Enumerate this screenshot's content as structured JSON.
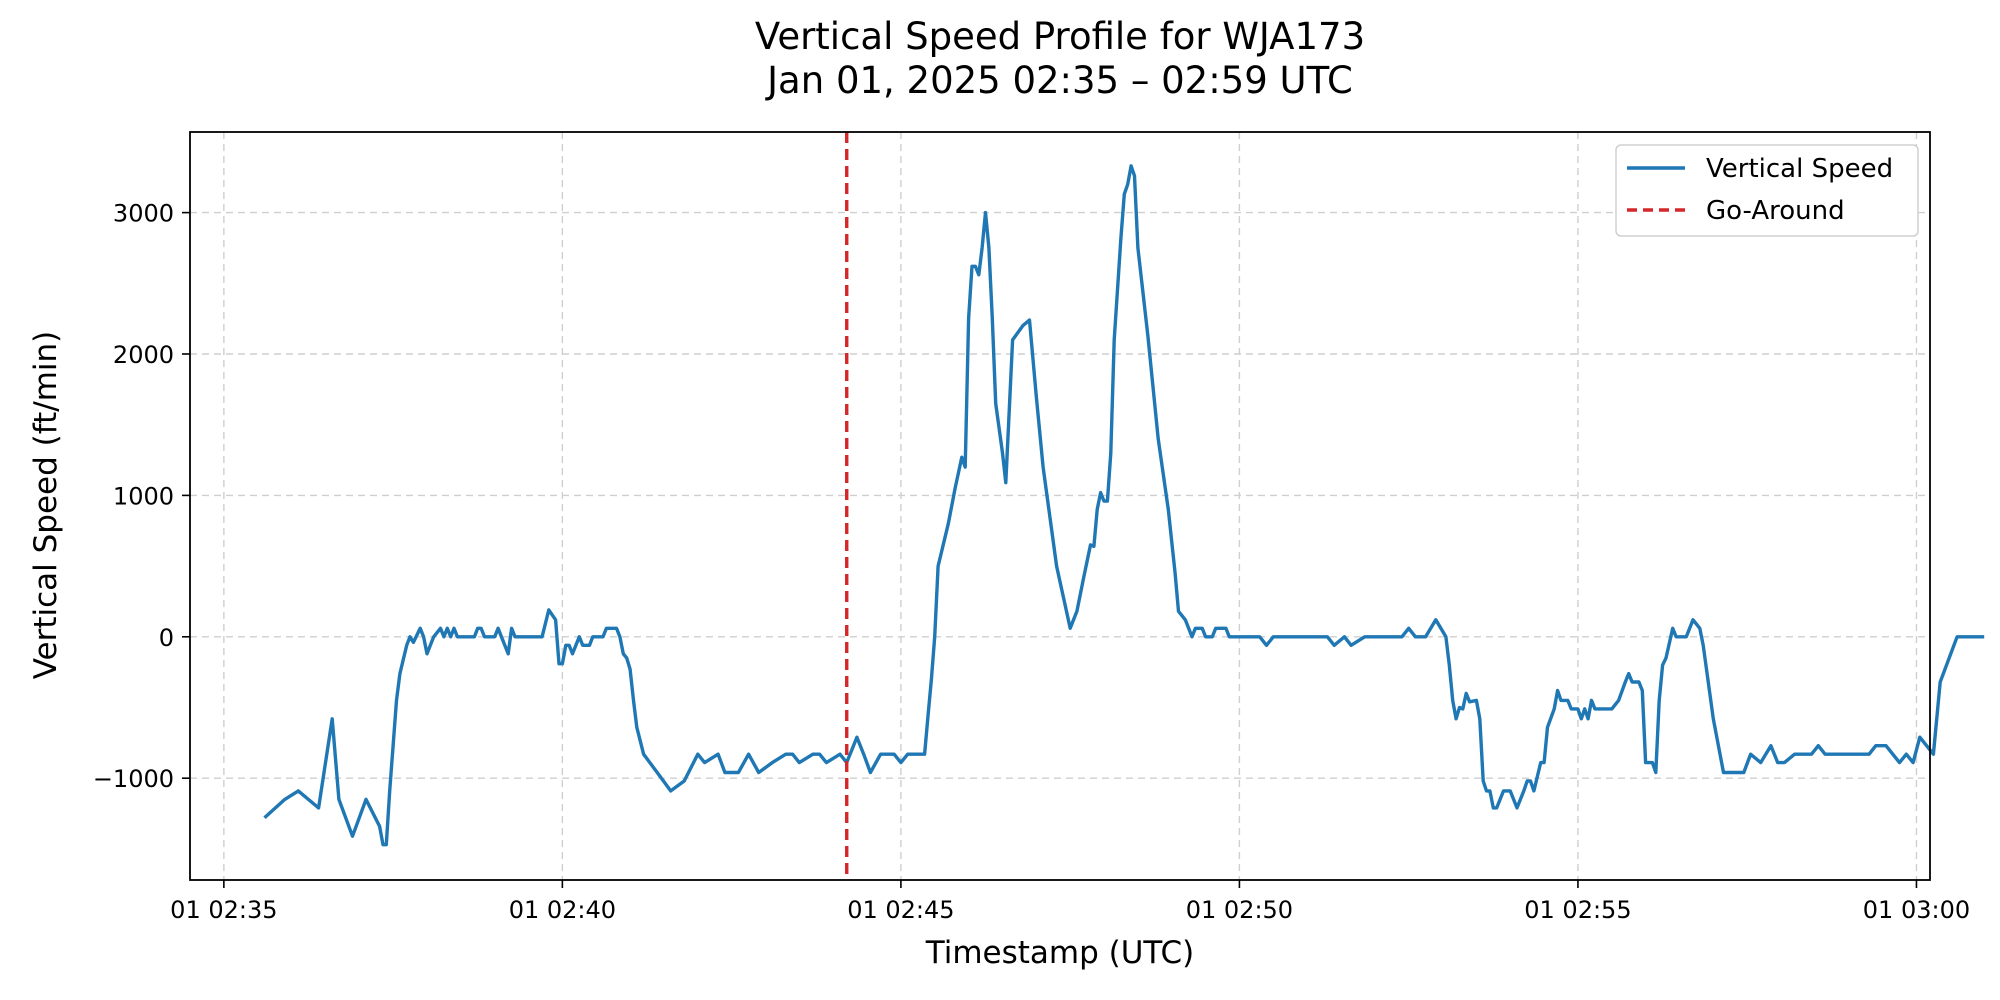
{
  "chart_data": {
    "type": "line",
    "title": "Vertical Speed Profile for WJA173",
    "subtitle": "Jan 01, 2025 02:35 – 02:59 UTC",
    "xlabel": "Timestamp (UTC)",
    "ylabel": "Vertical Speed (ft/min)",
    "xlim": [
      "02:34.5",
      "03:00.2"
    ],
    "ylim": [
      -1720,
      3570
    ],
    "x_ticks": [
      {
        "x": "02:35",
        "label": "01 02:35"
      },
      {
        "x": "02:40",
        "label": "01 02:40"
      },
      {
        "x": "02:45",
        "label": "01 02:45"
      },
      {
        "x": "02:50",
        "label": "01 02:50"
      },
      {
        "x": "02:55",
        "label": "01 02:55"
      },
      {
        "x": "03:00",
        "label": "01 03:00"
      }
    ],
    "y_ticks": [
      {
        "value": -1000,
        "label": "−1000"
      },
      {
        "value": 0,
        "label": "0"
      },
      {
        "value": 1000,
        "label": "1000"
      },
      {
        "value": 2000,
        "label": "2000"
      },
      {
        "value": 3000,
        "label": "3000"
      }
    ],
    "grid": true,
    "legend_position": "top-right",
    "colors": {
      "series": "#1f77b4",
      "go_around": "#d62728"
    },
    "series": [
      {
        "name": "Vertical Speed",
        "points": [
          [
            "02:35.6",
            -1280
          ],
          [
            "02:35.9",
            -1150
          ],
          [
            "02:36.1",
            -1090
          ],
          [
            "02:36.4",
            -1210
          ],
          [
            "02:36.6",
            -580
          ],
          [
            "02:36.7",
            -1150
          ],
          [
            "02:36.9",
            -1410
          ],
          [
            "02:37.1",
            -1150
          ],
          [
            "02:37.3",
            -1340
          ],
          [
            "02:37.35",
            -1470
          ],
          [
            "02:37.4",
            -1470
          ],
          [
            "02:37.45",
            -1090
          ],
          [
            "02:37.5",
            -770
          ],
          [
            "02:37.55",
            -450
          ],
          [
            "02:37.6",
            -260
          ],
          [
            "02:37.7",
            -60
          ],
          [
            "02:37.75",
            0
          ],
          [
            "02:37.8",
            -40
          ],
          [
            "02:37.9",
            60
          ],
          [
            "02:37.95",
            0
          ],
          [
            "02:38.0",
            -120
          ],
          [
            "02:38.1",
            0
          ],
          [
            "02:38.2",
            60
          ],
          [
            "02:38.25",
            0
          ],
          [
            "02:38.3",
            60
          ],
          [
            "02:38.35",
            0
          ],
          [
            "02:38.4",
            60
          ],
          [
            "02:38.45",
            0
          ],
          [
            "02:38.6",
            0
          ],
          [
            "02:38.7",
            0
          ],
          [
            "02:38.75",
            60
          ],
          [
            "02:38.8",
            60
          ],
          [
            "02:38.85",
            0
          ],
          [
            "02:39.0",
            0
          ],
          [
            "02:39.05",
            60
          ],
          [
            "02:39.1",
            0
          ],
          [
            "02:39.2",
            -120
          ],
          [
            "02:39.25",
            60
          ],
          [
            "02:39.3",
            0
          ],
          [
            "02:39.7",
            0
          ],
          [
            "02:39.8",
            190
          ],
          [
            "02:39.9",
            120
          ],
          [
            "02:39.95",
            -190
          ],
          [
            "02:40.0",
            -190
          ],
          [
            "02:40.05",
            -60
          ],
          [
            "02:40.1",
            -60
          ],
          [
            "02:40.15",
            -120
          ],
          [
            "02:40.2",
            -60
          ],
          [
            "02:40.25",
            0
          ],
          [
            "02:40.3",
            -60
          ],
          [
            "02:40.4",
            -60
          ],
          [
            "02:40.45",
            0
          ],
          [
            "02:40.6",
            0
          ],
          [
            "02:40.65",
            60
          ],
          [
            "02:40.8",
            60
          ],
          [
            "02:40.85",
            0
          ],
          [
            "02:40.9",
            -120
          ],
          [
            "02:40.95",
            -150
          ],
          [
            "02:41.0",
            -230
          ],
          [
            "02:41.05",
            -450
          ],
          [
            "02:41.1",
            -640
          ],
          [
            "02:41.2",
            -830
          ],
          [
            "02:41.4",
            -960
          ],
          [
            "02:41.6",
            -1090
          ],
          [
            "02:41.8",
            -1020
          ],
          [
            "02:42.0",
            -830
          ],
          [
            "02:42.1",
            -890
          ],
          [
            "02:42.3",
            -830
          ],
          [
            "02:42.4",
            -960
          ],
          [
            "02:42.6",
            -960
          ],
          [
            "02:42.75",
            -830
          ],
          [
            "02:42.9",
            -960
          ],
          [
            "02:43.1",
            -890
          ],
          [
            "02:43.3",
            -830
          ],
          [
            "02:43.4",
            -830
          ],
          [
            "02:43.5",
            -890
          ],
          [
            "02:43.7",
            -830
          ],
          [
            "02:43.8",
            -830
          ],
          [
            "02:43.9",
            -890
          ],
          [
            "02:44.1",
            -830
          ],
          [
            "02:44.2",
            -890
          ],
          [
            "02:44.3",
            -770
          ],
          [
            "02:44.35",
            -710
          ],
          [
            "02:44.45",
            -830
          ],
          [
            "02:44.55",
            -960
          ],
          [
            "02:44.7",
            -830
          ],
          [
            "02:44.9",
            -830
          ],
          [
            "02:45.0",
            -890
          ],
          [
            "02:45.1",
            -830
          ],
          [
            "02:45.2",
            -830
          ],
          [
            "02:45.3",
            -830
          ],
          [
            "02:45.35",
            -830
          ],
          [
            "02:45.4",
            -560
          ],
          [
            "02:45.45",
            -300
          ],
          [
            "02:45.5",
            0
          ],
          [
            "02:45.55",
            500
          ],
          [
            "02:45.7",
            800
          ],
          [
            "02:45.8",
            1050
          ],
          [
            "02:45.9",
            1270
          ],
          [
            "02:45.95",
            1200
          ],
          [
            "02:46.0",
            2250
          ],
          [
            "02:46.05",
            2620
          ],
          [
            "02:46.1",
            2620
          ],
          [
            "02:46.15",
            2560
          ],
          [
            "02:46.2",
            2750
          ],
          [
            "02:46.25",
            3000
          ],
          [
            "02:46.3",
            2750
          ],
          [
            "02:46.35",
            2250
          ],
          [
            "02:46.4",
            1650
          ],
          [
            "02:46.5",
            1300
          ],
          [
            "02:46.55",
            1090
          ],
          [
            "02:46.65",
            2100
          ],
          [
            "02:46.8",
            2200
          ],
          [
            "02:46.9",
            2240
          ],
          [
            "02:47.0",
            1700
          ],
          [
            "02:47.1",
            1200
          ],
          [
            "02:47.3",
            500
          ],
          [
            "02:47.5",
            60
          ],
          [
            "02:47.6",
            180
          ],
          [
            "02:47.7",
            420
          ],
          [
            "02:47.8",
            650
          ],
          [
            "02:47.85",
            640
          ],
          [
            "02:47.9",
            900
          ],
          [
            "02:47.95",
            1020
          ],
          [
            "02:48.0",
            960
          ],
          [
            "02:48.05",
            960
          ],
          [
            "02:48.1",
            1300
          ],
          [
            "02:48.15",
            2100
          ],
          [
            "02:48.25",
            2820
          ],
          [
            "02:48.3",
            3130
          ],
          [
            "02:48.35",
            3200
          ],
          [
            "02:48.4",
            3330
          ],
          [
            "02:48.45",
            3260
          ],
          [
            "02:48.5",
            2750
          ],
          [
            "02:48.65",
            2120
          ],
          [
            "02:48.8",
            1400
          ],
          [
            "02:48.95",
            900
          ],
          [
            "02:49.05",
            450
          ],
          [
            "02:49.1",
            180
          ],
          [
            "02:49.2",
            120
          ],
          [
            "02:49.3",
            0
          ],
          [
            "02:49.35",
            60
          ],
          [
            "02:49.45",
            60
          ],
          [
            "02:49.5",
            0
          ],
          [
            "02:49.6",
            0
          ],
          [
            "02:49.65",
            60
          ],
          [
            "02:49.8",
            60
          ],
          [
            "02:49.85",
            0
          ],
          [
            "02:50.3",
            0
          ],
          [
            "02:50.4",
            -60
          ],
          [
            "02:50.5",
            0
          ],
          [
            "02:51.3",
            0
          ],
          [
            "02:51.4",
            -60
          ],
          [
            "02:51.55",
            0
          ],
          [
            "02:51.65",
            -60
          ],
          [
            "02:51.85",
            0
          ],
          [
            "02:52.4",
            0
          ],
          [
            "02:52.5",
            60
          ],
          [
            "02:52.6",
            0
          ],
          [
            "02:52.75",
            0
          ],
          [
            "02:52.9",
            120
          ],
          [
            "02:53.05",
            0
          ],
          [
            "02:53.1",
            -200
          ],
          [
            "02:53.15",
            -450
          ],
          [
            "02:53.2",
            -580
          ],
          [
            "02:53.25",
            -500
          ],
          [
            "02:53.3",
            -510
          ],
          [
            "02:53.35",
            -400
          ],
          [
            "02:53.4",
            -460
          ],
          [
            "02:53.5",
            -450
          ],
          [
            "02:53.55",
            -580
          ],
          [
            "02:53.6",
            -1020
          ],
          [
            "02:53.65",
            -1090
          ],
          [
            "02:53.7",
            -1090
          ],
          [
            "02:53.75",
            -1210
          ],
          [
            "02:53.8",
            -1210
          ],
          [
            "02:53.9",
            -1090
          ],
          [
            "02:54.0",
            -1090
          ],
          [
            "02:54.05",
            -1150
          ],
          [
            "02:54.1",
            -1210
          ],
          [
            "02:54.2",
            -1090
          ],
          [
            "02:54.25",
            -1020
          ],
          [
            "02:54.3",
            -1020
          ],
          [
            "02:54.35",
            -1090
          ],
          [
            "02:54.45",
            -890
          ],
          [
            "02:54.5",
            -890
          ],
          [
            "02:54.55",
            -640
          ],
          [
            "02:54.65",
            -510
          ],
          [
            "02:54.7",
            -380
          ],
          [
            "02:54.75",
            -450
          ],
          [
            "02:54.85",
            -450
          ],
          [
            "02:54.9",
            -510
          ],
          [
            "02:55.0",
            -510
          ],
          [
            "02:55.05",
            -580
          ],
          [
            "02:55.1",
            -510
          ],
          [
            "02:55.15",
            -580
          ],
          [
            "02:55.2",
            -450
          ],
          [
            "02:55.25",
            -510
          ],
          [
            "02:55.5",
            -510
          ],
          [
            "02:55.6",
            -450
          ],
          [
            "02:55.7",
            -320
          ],
          [
            "02:55.75",
            -260
          ],
          [
            "02:55.8",
            -320
          ],
          [
            "02:55.9",
            -320
          ],
          [
            "02:55.95",
            -380
          ],
          [
            "02:56.0",
            -890
          ],
          [
            "02:56.1",
            -890
          ],
          [
            "02:56.15",
            -960
          ],
          [
            "02:56.2",
            -450
          ],
          [
            "02:56.25",
            -200
          ],
          [
            "02:56.3",
            -150
          ],
          [
            "02:56.4",
            60
          ],
          [
            "02:56.45",
            0
          ],
          [
            "02:56.6",
            0
          ],
          [
            "02:56.7",
            120
          ],
          [
            "02:56.8",
            60
          ],
          [
            "02:56.85",
            -60
          ],
          [
            "02:57.0",
            -580
          ],
          [
            "02:57.15",
            -960
          ],
          [
            "02:57.45",
            -960
          ],
          [
            "02:57.55",
            -830
          ],
          [
            "02:57.7",
            -890
          ],
          [
            "02:57.85",
            -770
          ],
          [
            "02:57.95",
            -890
          ],
          [
            "02:58.05",
            -890
          ],
          [
            "02:58.2",
            -830
          ],
          [
            "02:58.45",
            -830
          ],
          [
            "02:58.55",
            -770
          ],
          [
            "02:58.65",
            -830
          ],
          [
            "02:59.3",
            -830
          ],
          [
            "02:59.4",
            -770
          ],
          [
            "02:59.55",
            -770
          ],
          [
            "02:59.65",
            -830
          ],
          [
            "02:59.75",
            -890
          ],
          [
            "02:59.85",
            -830
          ],
          [
            "02:59.95",
            -890
          ],
          [
            "03:00.05",
            -710
          ],
          [
            "03:00.15",
            -770
          ],
          [
            "03:00.25",
            -830
          ],
          [
            "03:00.35",
            -320
          ],
          [
            "03:00.6",
            0
          ],
          [
            "03:01.0",
            0
          ]
        ]
      }
    ],
    "markers": [
      {
        "name": "Go-Around",
        "type": "vline",
        "x": "02:44.2"
      }
    ],
    "legend": [
      {
        "label": "Vertical Speed",
        "style": "solid"
      },
      {
        "label": "Go-Around",
        "style": "dashed"
      }
    ]
  }
}
